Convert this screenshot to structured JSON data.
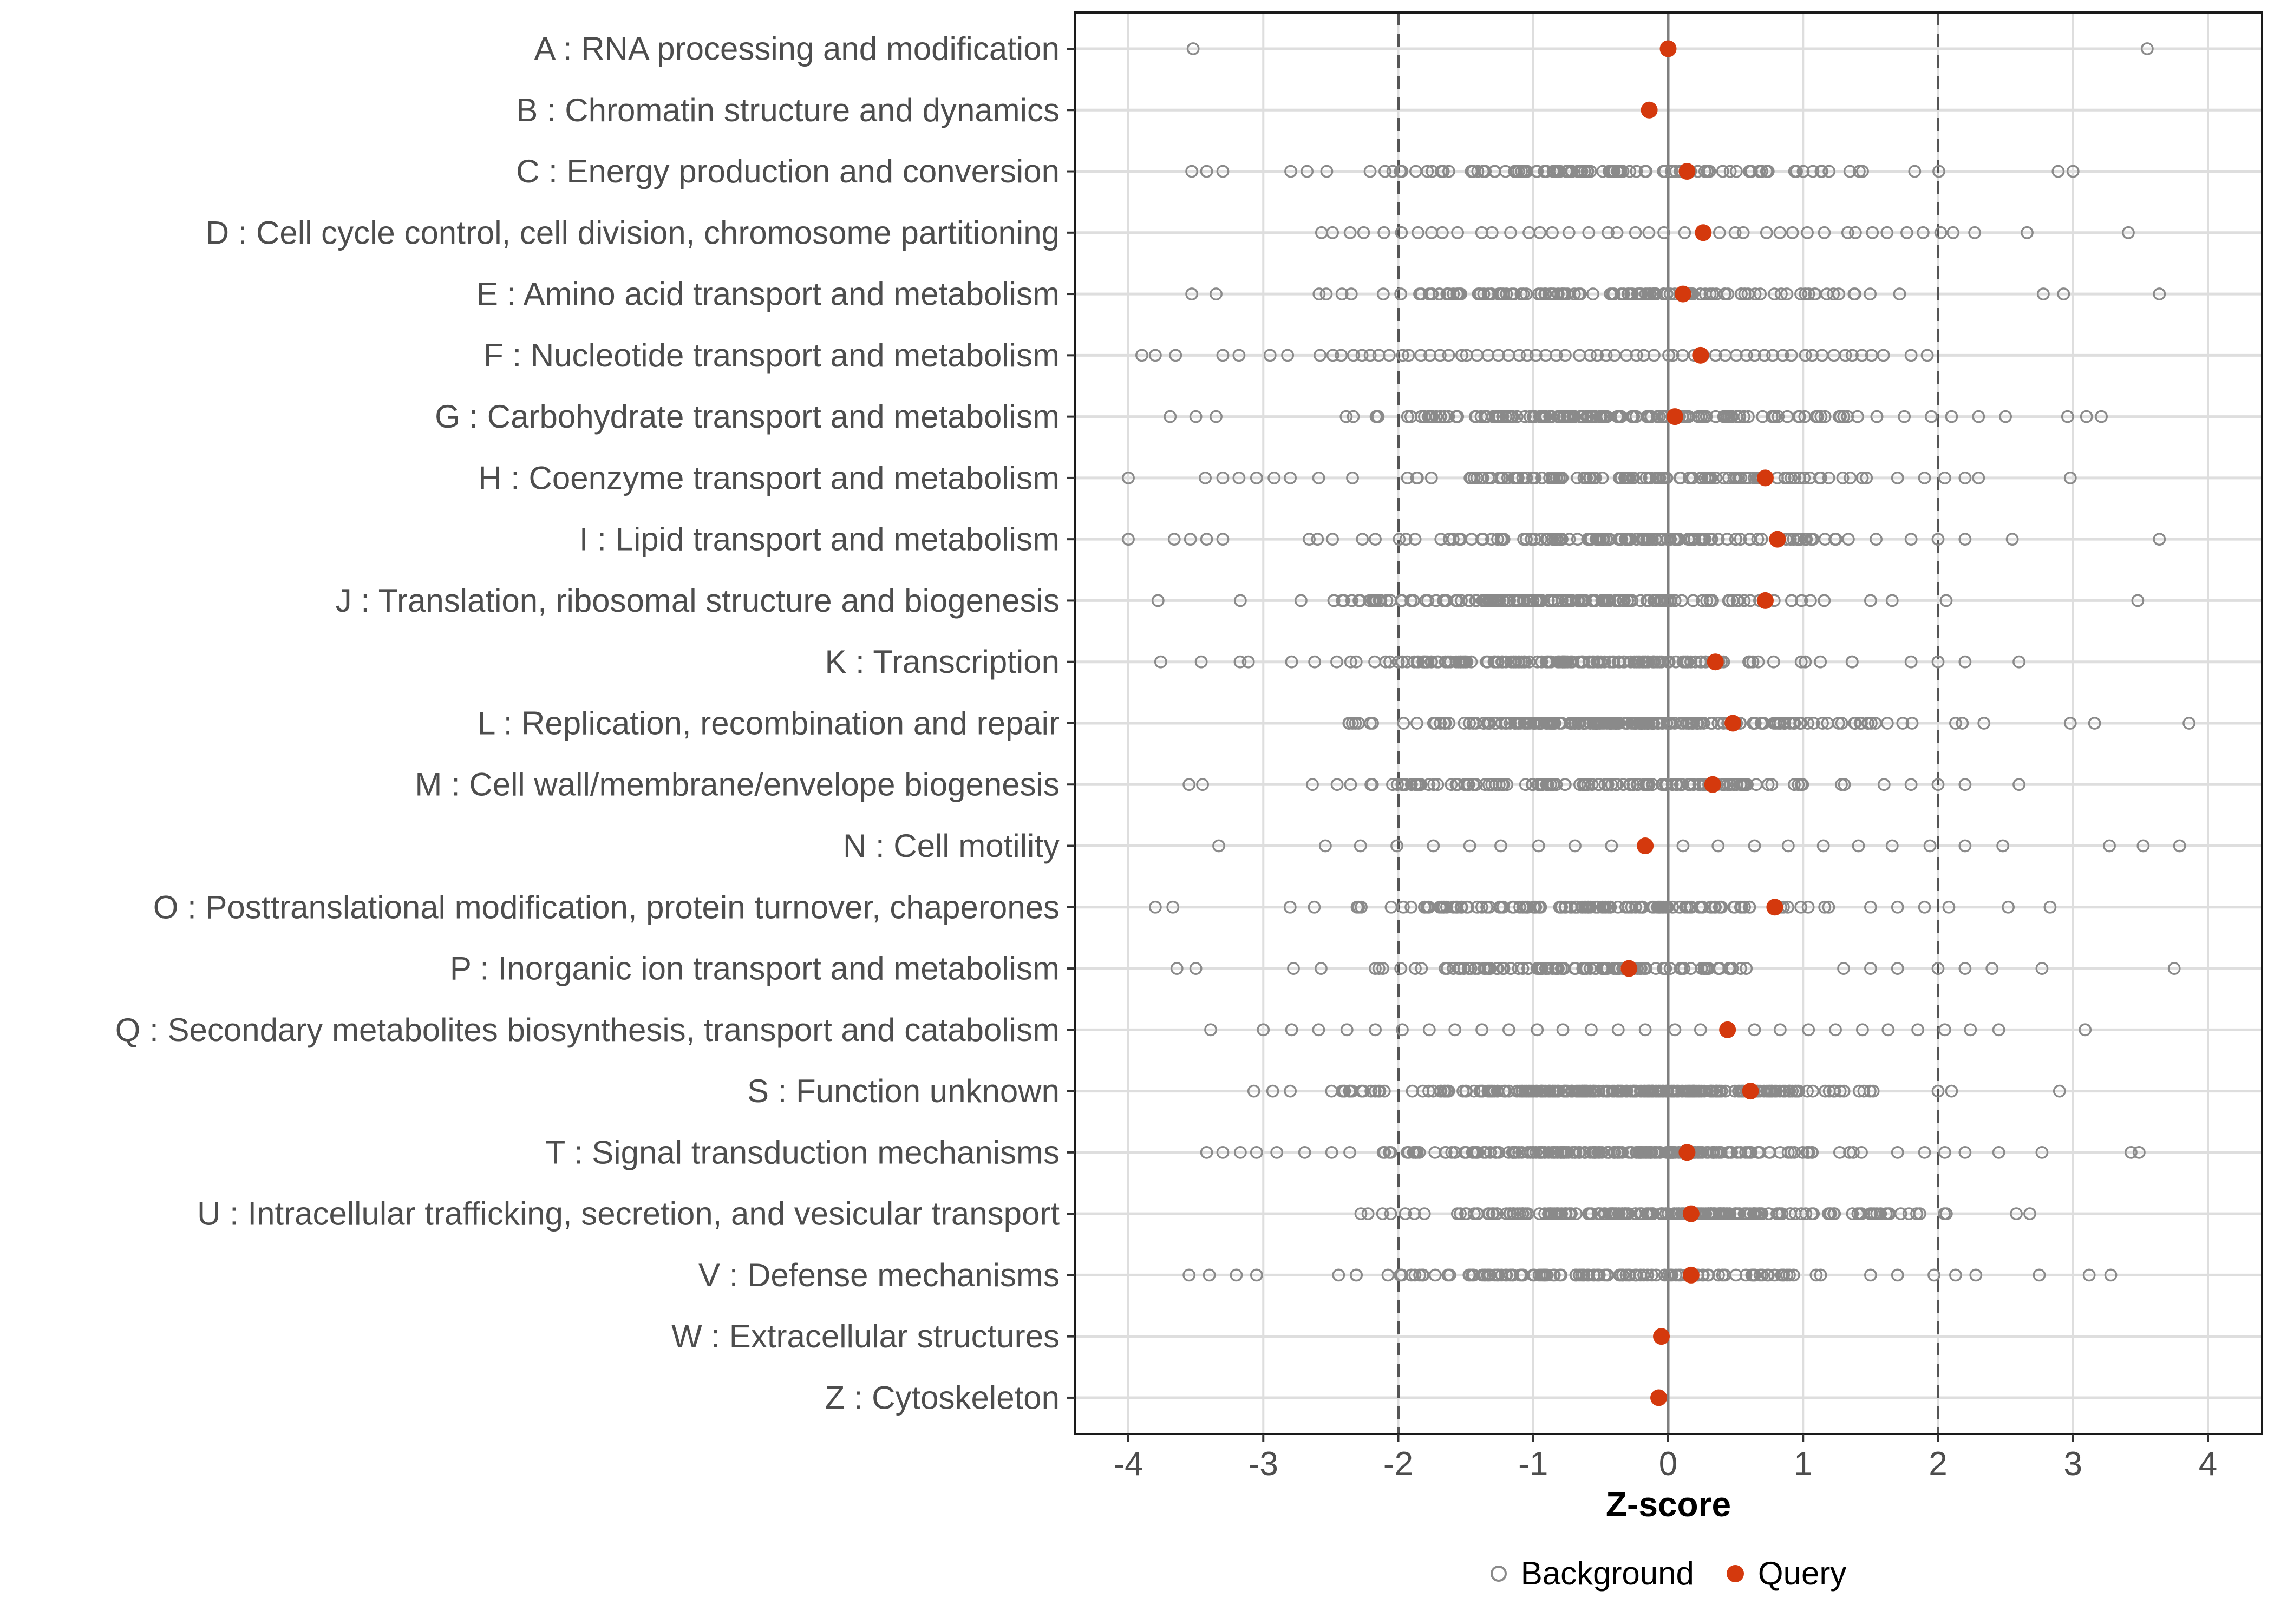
{
  "figure": {
    "background": "#FFFFFF"
  },
  "chart_data": {
    "type": "scatter",
    "variant": "horizontal-strip-dot-plot",
    "title": "",
    "xlabel": "Z-score",
    "ylabel": "",
    "x_ticks": [
      -4,
      -3,
      -2,
      -1,
      0,
      1,
      2,
      3,
      4
    ],
    "xlim": [
      -4.4,
      4.4
    ],
    "grid": "major-vertical-and-row-lines",
    "reference_lines": {
      "solid": [
        0
      ],
      "dashed": [
        -2,
        2
      ]
    },
    "legend": {
      "position": "bottom-center",
      "background_label": "Background",
      "query_label": "Query"
    },
    "colors": {
      "background_point_stroke": "#8A8A8A",
      "query_point_fill": "#D4390D",
      "grid_line": "#DEDEDE",
      "zero_line": "#7F7F7F",
      "dashed_line": "#555555",
      "panel_border": "#1A1A1A",
      "axis_tick": "#333333",
      "axis_text": "#4D4D4D",
      "legend_text": "#000000"
    },
    "categories": [
      {
        "code": "A",
        "label": "A : RNA processing and modification",
        "query_z": 0.0,
        "background": {
          "dist": "list",
          "points": [
            -3.52,
            3.55
          ]
        }
      },
      {
        "code": "B",
        "label": "B : Chromatin structure and dynamics",
        "query_z": -0.14,
        "background": {
          "dist": "list",
          "points": []
        }
      },
      {
        "code": "C",
        "label": "C : Energy production and conversion",
        "query_z": 0.14,
        "background": {
          "dist": "normal",
          "n": 120,
          "mean": -0.4,
          "sd": 1.0,
          "min": -3.1,
          "max": 2.06,
          "extra": [
            -3.53,
            -3.42,
            -3.3,
            2.89,
            3.0
          ]
        }
      },
      {
        "code": "D",
        "label": "D : Cell cycle control, cell division, chromosome partitioning",
        "query_z": 0.26,
        "background": {
          "dist": "uniform",
          "n": 42,
          "min": -2.65,
          "max": 2.3,
          "extra": [
            2.66,
            3.41
          ]
        }
      },
      {
        "code": "E",
        "label": "E : Amino acid transport and metabolism",
        "query_z": 0.11,
        "background": {
          "dist": "normal",
          "n": 125,
          "mean": -0.4,
          "sd": 1.0,
          "min": -3.05,
          "max": 1.98,
          "extra": [
            -3.53,
            -3.35,
            2.78,
            2.93,
            3.64
          ]
        }
      },
      {
        "code": "F",
        "label": "F : Nucleotide transport and metabolism",
        "query_z": 0.24,
        "background": {
          "dist": "uniform",
          "n": 58,
          "min": -2.6,
          "max": 1.62,
          "extra": [
            -3.9,
            -3.8,
            -3.65,
            -3.3,
            -3.18,
            -2.95,
            -2.82,
            1.8,
            1.92
          ]
        }
      },
      {
        "code": "G",
        "label": "G : Carbohydrate transport and metabolism",
        "query_z": 0.05,
        "background": {
          "dist": "normal",
          "n": 150,
          "mean": -0.5,
          "sd": 1.0,
          "min": -3.0,
          "max": 1.55,
          "extra": [
            -3.69,
            -3.5,
            -3.35,
            1.75,
            1.95,
            2.1,
            2.3,
            2.5,
            2.96,
            3.1,
            3.21
          ]
        }
      },
      {
        "code": "H",
        "label": "H : Coenzyme transport and metabolism",
        "query_z": 0.72,
        "background": {
          "dist": "normal",
          "n": 115,
          "mean": -0.3,
          "sd": 0.95,
          "min": -2.6,
          "max": 1.5,
          "extra": [
            -4.0,
            -3.43,
            -3.3,
            -3.18,
            -3.05,
            -2.92,
            -2.8,
            1.7,
            1.9,
            2.05,
            2.2,
            2.3,
            2.98
          ]
        }
      },
      {
        "code": "I",
        "label": "I : Lipid transport and metabolism",
        "query_z": 0.81,
        "background": {
          "dist": "normal",
          "n": 135,
          "mean": -0.35,
          "sd": 1.0,
          "min": -2.8,
          "max": 1.6,
          "extra": [
            -4.0,
            -3.66,
            -3.54,
            -3.42,
            -3.3,
            1.8,
            2.0,
            2.2,
            2.55,
            3.64
          ]
        }
      },
      {
        "code": "J",
        "label": "J : Translation, ribosomal structure and biogenesis",
        "query_z": 0.72,
        "background": {
          "dist": "normal",
          "n": 160,
          "mean": -0.8,
          "sd": 0.95,
          "min": -3.2,
          "max": 1.3,
          "extra": [
            -3.78,
            1.5,
            1.66,
            2.06,
            3.48
          ]
        }
      },
      {
        "code": "K",
        "label": "K : Transcription",
        "query_z": 0.35,
        "background": {
          "dist": "normal",
          "n": 160,
          "mean": -0.6,
          "sd": 1.0,
          "min": -3.2,
          "max": 1.5,
          "extra": [
            -3.76,
            -3.46,
            1.8,
            2.0,
            2.2,
            2.6
          ]
        }
      },
      {
        "code": "L",
        "label": "L : Replication, recombination and repair",
        "query_z": 0.48,
        "background": {
          "dist": "normal",
          "n": 210,
          "mean": -0.2,
          "sd": 0.95,
          "min": -2.54,
          "max": 1.9,
          "extra": [
            2.13,
            2.18,
            2.34,
            2.98,
            3.16,
            3.86
          ]
        }
      },
      {
        "code": "M",
        "label": "M : Cell wall/membrane/envelope biogenesis",
        "query_z": 0.33,
        "background": {
          "dist": "normal",
          "n": 120,
          "mean": -0.55,
          "sd": 1.0,
          "min": -3.0,
          "max": 1.4,
          "extra": [
            -3.55,
            -3.45,
            1.6,
            1.8,
            2.0,
            2.2,
            2.6
          ]
        }
      },
      {
        "code": "N",
        "label": "N : Cell motility",
        "query_z": -0.17,
        "background": {
          "dist": "list",
          "points": [
            -3.33,
            -2.54,
            -2.28,
            -2.01,
            -1.74,
            -1.47,
            -1.24,
            -0.96,
            -0.69,
            -0.42,
            0.11,
            0.37,
            0.64,
            0.89,
            1.15,
            1.41,
            1.66,
            1.94,
            2.2,
            2.48,
            3.27,
            3.52,
            3.79
          ]
        }
      },
      {
        "code": "O",
        "label": "O : Posttranslational modification, protein turnover, chaperones",
        "query_z": 0.79,
        "background": {
          "dist": "normal",
          "n": 130,
          "mean": -0.45,
          "sd": 1.0,
          "min": -3.0,
          "max": 1.3,
          "extra": [
            -3.8,
            -3.67,
            1.5,
            1.7,
            1.9,
            2.08,
            2.52,
            2.83
          ]
        }
      },
      {
        "code": "P",
        "label": "P : Inorganic ion transport and metabolism",
        "query_z": -0.29,
        "background": {
          "dist": "normal",
          "n": 110,
          "mean": -0.55,
          "sd": 0.95,
          "min": -2.8,
          "max": 1.1,
          "extra": [
            -3.64,
            -3.5,
            1.3,
            1.5,
            1.7,
            2.0,
            2.2,
            2.4,
            2.77,
            3.75
          ]
        }
      },
      {
        "code": "Q",
        "label": "Q : Secondary metabolites biosynthesis, transport and catabolism",
        "query_z": 0.44,
        "background": {
          "dist": "list",
          "points": [
            -3.39,
            -3.0,
            -2.79,
            -2.59,
            -2.38,
            -2.17,
            -1.97,
            -1.77,
            -1.58,
            -1.38,
            -1.18,
            -0.97,
            -0.78,
            -0.57,
            -0.37,
            -0.17,
            0.05,
            0.24,
            0.64,
            0.83,
            1.04,
            1.24,
            1.44,
            1.63,
            1.85,
            2.05,
            2.24,
            2.45,
            3.09
          ]
        }
      },
      {
        "code": "S",
        "label": "S : Function unknown",
        "query_z": 0.61,
        "background": {
          "dist": "normal",
          "n": 240,
          "mean": -0.3,
          "sd": 0.95,
          "min": -2.6,
          "max": 1.8,
          "extra": [
            -3.07,
            -2.93,
            -2.8,
            2.0,
            2.1,
            2.9
          ]
        }
      },
      {
        "code": "T",
        "label": "T : Signal transduction mechanisms",
        "query_z": 0.14,
        "background": {
          "dist": "normal",
          "n": 190,
          "mean": -0.4,
          "sd": 1.0,
          "min": -2.7,
          "max": 1.5,
          "extra": [
            -3.42,
            -3.3,
            -3.17,
            -3.05,
            -2.9,
            1.7,
            1.9,
            2.05,
            2.2,
            2.45,
            2.77,
            3.43,
            3.49
          ]
        }
      },
      {
        "code": "U",
        "label": "U : Intracellular trafficking, secretion, and vesicular transport",
        "query_z": 0.17,
        "background": {
          "dist": "normal",
          "n": 200,
          "mean": 0.0,
          "sd": 1.0,
          "min": -2.4,
          "max": 2.14,
          "extra": [
            2.58,
            2.68
          ]
        }
      },
      {
        "code": "V",
        "label": "V : Defense mechanisms",
        "query_z": 0.17,
        "background": {
          "dist": "normal",
          "n": 120,
          "mean": -0.5,
          "sd": 0.9,
          "min": -2.6,
          "max": 1.3,
          "extra": [
            -3.55,
            -3.4,
            -3.2,
            -3.05,
            1.5,
            1.7,
            1.97,
            2.13,
            2.28,
            2.75,
            3.12,
            3.28
          ]
        }
      },
      {
        "code": "W",
        "label": "W : Extracellular structures",
        "query_z": -0.05,
        "background": {
          "dist": "list",
          "points": []
        }
      },
      {
        "code": "Z",
        "label": "Z : Cytoskeleton",
        "query_z": -0.07,
        "background": {
          "dist": "list",
          "points": []
        }
      }
    ]
  }
}
